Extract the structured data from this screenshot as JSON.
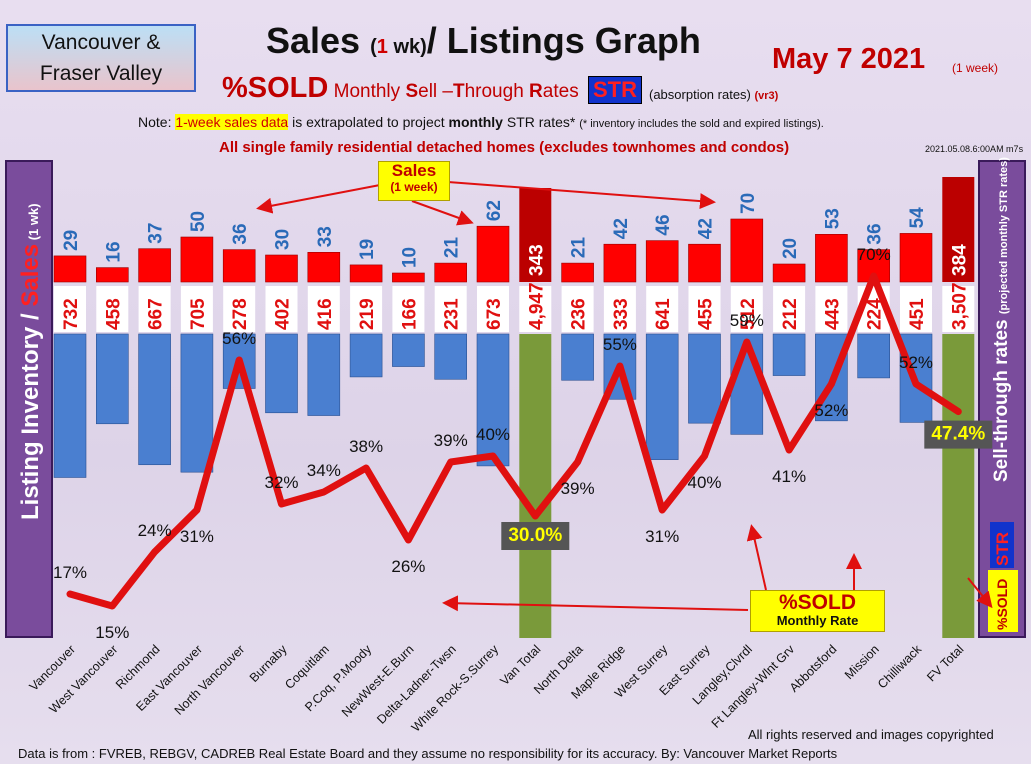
{
  "header": {
    "region_line1": "Vancouver &",
    "region_line2": "Fraser Valley",
    "title_pre": "Sales ",
    "title_paren_open": "(",
    "title_num": "1",
    "title_paren_wk": " wk)",
    "title_post": "/ Listings Graph",
    "date": "May 7  2021",
    "date_sub": "(1 week)",
    "sub_big": "%SOLD",
    "sub_text_1": " Monthly ",
    "sub_S": "S",
    "sub_text_2": "ell –",
    "sub_T": "T",
    "sub_text_3": "hrough ",
    "sub_R": "R",
    "sub_text_4": "ates",
    "str_badge": "STR",
    "abs_text": "(absorption rates) ",
    "abs_vr": "(vr3)",
    "note_pre": "Note: ",
    "note_hl": "1-week sales data",
    "note_mid": " is extrapolated to project ",
    "note_bold": "monthly",
    "note_post": " STR rates* ",
    "note_small": "(* inventory includes the sold and expired listings).",
    "sfd_main": "All single family residential detached homes ",
    "sfd_paren": "(excludes townhomes and condos)",
    "stamp": "2021.05.08.6:00AM m7s"
  },
  "axes": {
    "left_inv": "Listing Inventory",
    "left_slash": " / ",
    "left_sales": "Sales",
    "left_small": " (1 wk)",
    "right_main": "Sell-through rates ",
    "right_small": "(projected monthly STR rates)",
    "right_str": "STR",
    "right_sold": "%SOLD"
  },
  "callouts": {
    "sales_t1": "Sales",
    "sales_t2": "(1 week)",
    "sold_t1": "%SOLD",
    "sold_t2": "Monthly Rate"
  },
  "footer": {
    "rights": "All rights reserved and  images copyrighted",
    "source": "Data is from : FVREB, REBGV, CADREB Real Estate Board and they assume no responsibility for its accuracy. By: Vancouver Market Reports"
  },
  "colors": {
    "sales_bar": "#ff0000",
    "sales_total_bar": "#bb0000",
    "inventory_bar": "#4a7fd0",
    "total_inventory_bar": "#7a9a3a",
    "str_line": "#e01010",
    "sales_label": "#2a6ab8",
    "total_label_box": "#555555",
    "total_label_text": "#ffff00"
  },
  "chart_data": {
    "type": "bar",
    "categories": [
      "Vancouver",
      "West Vancouver",
      "Richmond",
      "East Vancouver",
      "North Vancouver",
      "Burnaby",
      "Coquitlam",
      "P.Coq, P.Moody",
      "NewWest-E.Burn",
      "Delta-Ladner-Twsn",
      "White Rock-S.Surrey",
      "Van Total",
      "North Delta",
      "Maple Ridge",
      "West Surrey",
      "East Surrey",
      "Langley,Clvrdl",
      "Ft Langley-Wlnt Grv",
      "Abbotsford",
      "Mission",
      "Chilliwack",
      "FV Total"
    ],
    "series": [
      {
        "name": "Sales",
        "values": [
          29,
          16,
          37,
          50,
          36,
          30,
          33,
          19,
          10,
          21,
          62,
          343,
          21,
          42,
          46,
          42,
          70,
          20,
          53,
          36,
          54,
          384
        ]
      },
      {
        "name": "Listing Inventory",
        "values": [
          732,
          458,
          667,
          705,
          278,
          402,
          416,
          219,
          166,
          231,
          673,
          4947,
          236,
          333,
          641,
          455,
          512,
          212,
          443,
          224,
          451,
          3507
        ]
      },
      {
        "name": "%SOLD",
        "values": [
          17,
          15,
          24,
          31,
          56,
          32,
          34,
          38,
          26,
          39,
          40,
          30.0,
          39,
          55,
          31,
          40,
          59,
          41,
          52,
          70,
          52,
          47.4
        ]
      }
    ],
    "sales_labels": [
      "29",
      "16",
      "37",
      "50",
      "36",
      "30",
      "33",
      "19",
      "10",
      "21",
      "62",
      "343",
      "21",
      "42",
      "46",
      "42",
      "70",
      "20",
      "53",
      "36",
      "54",
      "384"
    ],
    "inventory_labels": [
      "732",
      "458",
      "667",
      "705",
      "278",
      "402",
      "416",
      "219",
      "166",
      "231",
      "673",
      "4,947",
      "236",
      "333",
      "641",
      "455",
      "512",
      "212",
      "443",
      "224",
      "451",
      "3,507"
    ],
    "pct_labels": [
      "17%",
      "15%",
      "24%",
      "31%",
      "56%",
      "32%",
      "34%",
      "38%",
      "26%",
      "39%",
      "40%",
      "30.0%",
      "39%",
      "55%",
      "31%",
      "40%",
      "59%",
      "41%",
      "52%",
      "70%",
      "52%",
      "47.4%"
    ],
    "total_indices": [
      11,
      21
    ]
  }
}
